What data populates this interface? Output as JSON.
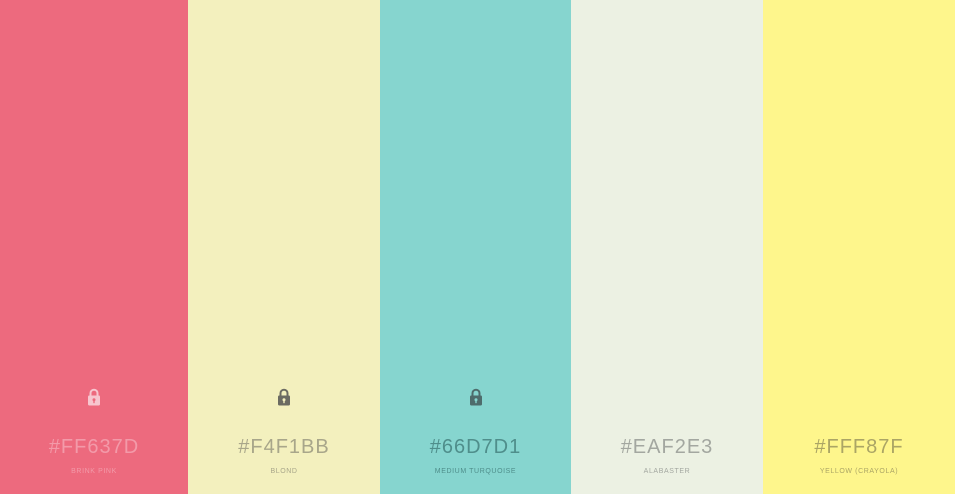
{
  "palette": {
    "swatches": [
      {
        "hex": "#FF637D",
        "name": "BRINK PINK",
        "display_color": "#ED6A7E",
        "text_color": "#F39AA9",
        "lock_icon": "lock-icon",
        "lock_color": "#F7C6CF",
        "locked": true
      },
      {
        "hex": "#F4F1BB",
        "name": "BLOND",
        "display_color": "#F3F0BE",
        "text_color": "#A8A68A",
        "lock_icon": "lock-icon",
        "lock_color": "#6B6B62",
        "locked": true
      },
      {
        "hex": "#66D7D1",
        "name": "MEDIUM TURQUOISE",
        "display_color": "#86D5CF",
        "text_color": "#4F8E8B",
        "lock_icon": "lock-icon",
        "lock_color": "#4E6C6C",
        "locked": true
      },
      {
        "hex": "#EAF2E3",
        "name": "ALABASTER",
        "display_color": "#ECF1E3",
        "text_color": "#A3A7A0",
        "locked": false
      },
      {
        "hex": "#FFF87F",
        "name": "YELLOW (CRAYOLA)",
        "display_color": "#FEF68C",
        "text_color": "#ABA565",
        "locked": false
      }
    ]
  }
}
